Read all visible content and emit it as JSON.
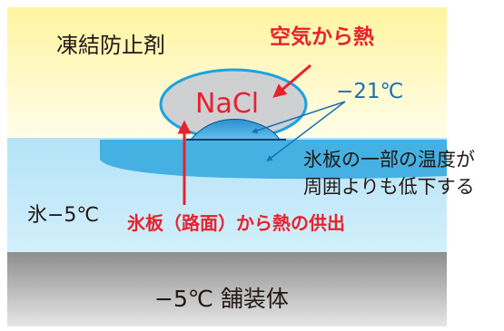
{
  "labels": {
    "antifreeze": "凍結防止剤",
    "heat_from_air": "空気から熱",
    "nacl": "NaCl",
    "temp_minus21": "−21℃",
    "ice_temp_line1": "氷板の一部の温度が",
    "ice_temp_line2": "周囲よりも低下する",
    "ice": "氷−5℃",
    "heat_from_ice": "氷板（路面）から熱の供出",
    "pavement": "−5℃ 舗装体"
  },
  "colors": {
    "red": "#e8212e",
    "blue_text": "#1a6fb5",
    "dark_text": "#231815",
    "nacl_fill": "#cfd0d2",
    "nacl_stroke": "#1aa3e0",
    "ice_top": "#b3e2f6",
    "ice_bottom": "#cdeefb",
    "brine_dark": "#1b74b8",
    "brine_light": "#45b3e5",
    "air_top": "#fff5a0",
    "air_bottom": "#fffde8",
    "pave_top": "#8a8a8a",
    "pave_bottom": "#e3e3e3"
  }
}
